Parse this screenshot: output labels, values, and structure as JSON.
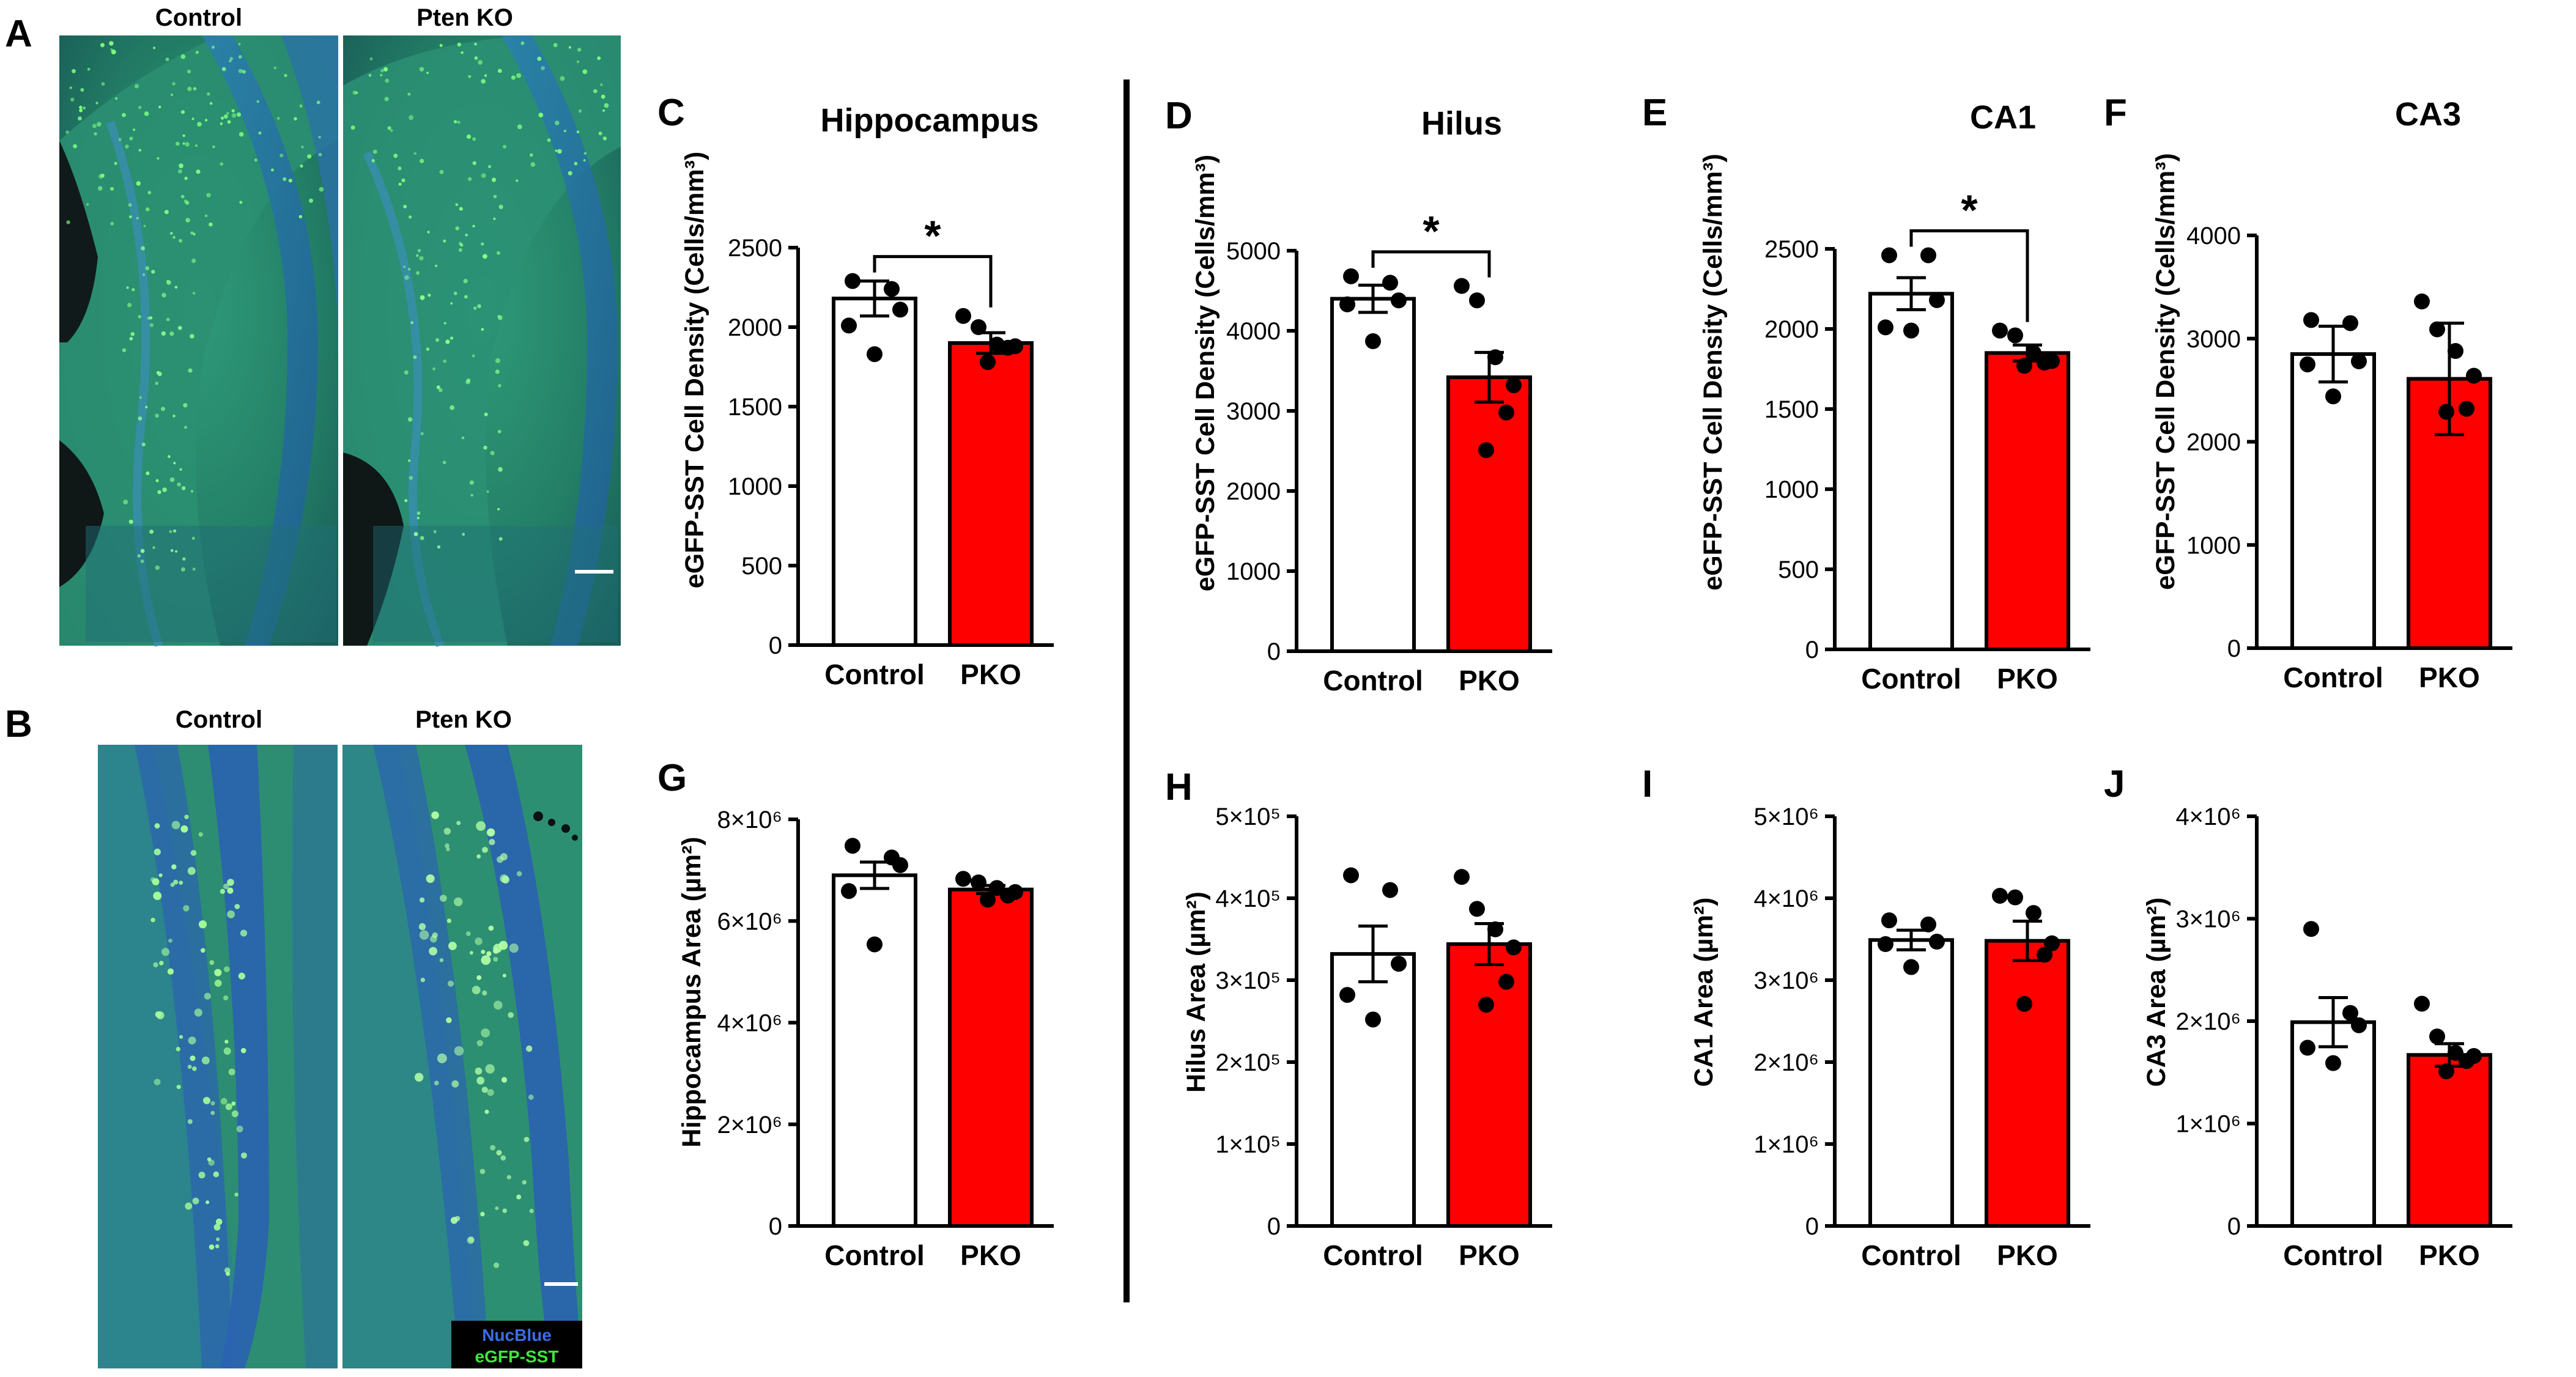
{
  "figure": {
    "panel_letters": [
      "A",
      "B",
      "C",
      "D",
      "E",
      "F",
      "G",
      "H",
      "I",
      "J"
    ],
    "colors": {
      "control": "#ffffff",
      "pko": "#ff0000",
      "ink": "#000000"
    }
  },
  "micrographs": {
    "A": {
      "letter": "A",
      "left_title": "Control",
      "right_title": "Pten KO"
    },
    "B": {
      "letter": "B",
      "left_title": "Control",
      "right_title": "Pten KO",
      "legend": {
        "nucblue": "NucBlue",
        "egfp": "eGFP-SST"
      }
    }
  },
  "chart_data": [
    {
      "panel": "C",
      "type": "bar",
      "title": "Hippocampus",
      "ylabel": "eGFP-SST Cell Density (Cells/mm³)",
      "ylim": [
        0,
        2500
      ],
      "yticks": [
        "0",
        "500",
        "1000",
        "1500",
        "2000",
        "2500"
      ],
      "categories": [
        "Control",
        "PKO"
      ],
      "values": [
        2180,
        1900
      ],
      "sem": [
        110,
        65
      ],
      "points": [
        [
          2290,
          2240,
          2110,
          2010,
          1830
        ],
        [
          2070,
          2000,
          1890,
          1880,
          1870,
          1780
        ]
      ],
      "significance": "*"
    },
    {
      "panel": "D",
      "type": "bar",
      "title": "Hilus",
      "ylabel": "eGFP-SST Cell Density (Cells/mm³)",
      "ylim": [
        0,
        5000
      ],
      "yticks": [
        "0",
        "1000",
        "2000",
        "3000",
        "4000",
        "5000"
      ],
      "categories": [
        "Control",
        "PKO"
      ],
      "values": [
        4400,
        3420
      ],
      "sem": [
        170,
        310
      ],
      "points": [
        [
          4680,
          4600,
          4380,
          4330,
          3870
        ],
        [
          4560,
          4380,
          3670,
          3320,
          2980,
          2510
        ]
      ],
      "significance": "*"
    },
    {
      "panel": "E",
      "type": "bar",
      "title": "CA1",
      "ylabel": "eGFP-SST Cell Density (Cells/mm³)",
      "ylim": [
        0,
        2500
      ],
      "yticks": [
        "0",
        "500",
        "1000",
        "1500",
        "2000",
        "2500"
      ],
      "categories": [
        "Control",
        "PKO"
      ],
      "values": [
        2220,
        1850
      ],
      "sem": [
        100,
        50
      ],
      "points": [
        [
          2460,
          2460,
          2180,
          2010,
          1990
        ],
        [
          1990,
          1960,
          1850,
          1800,
          1790,
          1770
        ]
      ],
      "significance": "*"
    },
    {
      "panel": "F",
      "type": "bar",
      "title": "CA3",
      "ylabel": "eGFP-SST Cell Density (Cells/mm³)",
      "ylim": [
        0,
        4000
      ],
      "yticks": [
        "0",
        "1000",
        "2000",
        "3000",
        "4000"
      ],
      "categories": [
        "Control",
        "PKO"
      ],
      "values": [
        2850,
        2610
      ],
      "sem": [
        270,
        540
      ],
      "points": [
        [
          3180,
          3150,
          2780,
          2750,
          2440
        ],
        [
          3360,
          3090,
          2880,
          2640,
          2320,
          2290
        ]
      ],
      "significance": ""
    },
    {
      "panel": "G",
      "type": "bar",
      "title": "",
      "ylabel": "Hippocampus Area (µm²)",
      "ylim": [
        0,
        8000000
      ],
      "yticks": [
        "0",
        "2×10⁶",
        "4×10⁶",
        "6×10⁶",
        "8×10⁶"
      ],
      "categories": [
        "Control",
        "PKO"
      ],
      "values": [
        6900000,
        6620000
      ],
      "sem": [
        260000,
        80000
      ],
      "points": [
        [
          7480000,
          7250000,
          7100000,
          6590000,
          5540000
        ],
        [
          6830000,
          6760000,
          6650000,
          6570000,
          6500000,
          6420000
        ]
      ],
      "significance": ""
    },
    {
      "panel": "H",
      "type": "bar",
      "title": "",
      "ylabel": "Hilus Area (µm²)",
      "ylim": [
        0,
        500000
      ],
      "yticks": [
        "0",
        "1×10⁵",
        "2×10⁵",
        "3×10⁵",
        "4×10⁵",
        "5×10⁵"
      ],
      "categories": [
        "Control",
        "PKO"
      ],
      "values": [
        332000,
        344000
      ],
      "sem": [
        34000,
        25000
      ],
      "points": [
        [
          428000,
          410000,
          320000,
          282000,
          252000
        ],
        [
          426000,
          387000,
          362000,
          340000,
          298000,
          270000
        ]
      ],
      "significance": ""
    },
    {
      "panel": "I",
      "type": "bar",
      "title": "",
      "ylabel": "CA1 Area (µm²)",
      "ylim": [
        0,
        5000000
      ],
      "yticks": [
        "0",
        "1×10⁶",
        "2×10⁶",
        "3×10⁶",
        "4×10⁶",
        "5×10⁶"
      ],
      "categories": [
        "Control",
        "PKO"
      ],
      "values": [
        3490000,
        3480000
      ],
      "sem": [
        120000,
        240000
      ],
      "points": [
        [
          3730000,
          3680000,
          3470000,
          3440000,
          3160000
        ],
        [
          4030000,
          4010000,
          3820000,
          3450000,
          3310000,
          2710000
        ]
      ],
      "significance": ""
    },
    {
      "panel": "J",
      "type": "bar",
      "title": "",
      "ylabel": "CA3 Area (µm²)",
      "ylim": [
        0,
        4000000
      ],
      "yticks": [
        "0",
        "1×10⁶",
        "2×10⁶",
        "3×10⁶",
        "4×10⁶"
      ],
      "categories": [
        "Control",
        "PKO"
      ],
      "values": [
        1990000,
        1670000
      ],
      "sem": [
        240000,
        110000
      ],
      "points": [
        [
          2900000,
          2080000,
          1960000,
          1740000,
          1590000
        ],
        [
          2170000,
          1850000,
          1690000,
          1660000,
          1610000,
          1510000
        ]
      ],
      "significance": ""
    }
  ]
}
